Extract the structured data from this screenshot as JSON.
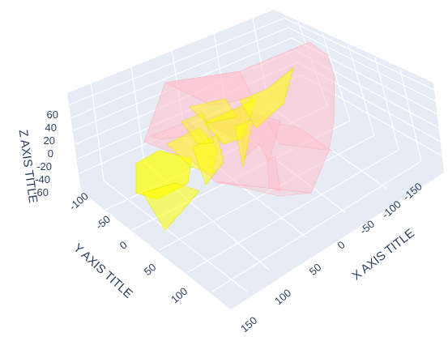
{
  "chart_data": {
    "type": "mesh3d",
    "x_axis": {
      "title": "X AXIS TITLE",
      "ticks": [
        "-150",
        "-100",
        "-50",
        "0",
        "50",
        "100",
        "150"
      ]
    },
    "y_axis": {
      "title": "Y AXIS TITLE",
      "ticks": [
        "-100",
        "-50",
        "0",
        "50",
        "100"
      ]
    },
    "z_axis": {
      "title": "Z AXIS TITLE",
      "ticks": [
        "60",
        "40",
        "20",
        "0",
        "-20",
        "-40",
        "-60"
      ]
    },
    "grid": true,
    "scene_background": "#e5ecf6",
    "gridline_color": "#ffffff",
    "series": [
      {
        "color": "#ffc0cb",
        "opacity": 0.55
      },
      {
        "color": "#ffff00",
        "opacity": 0.55
      }
    ]
  }
}
